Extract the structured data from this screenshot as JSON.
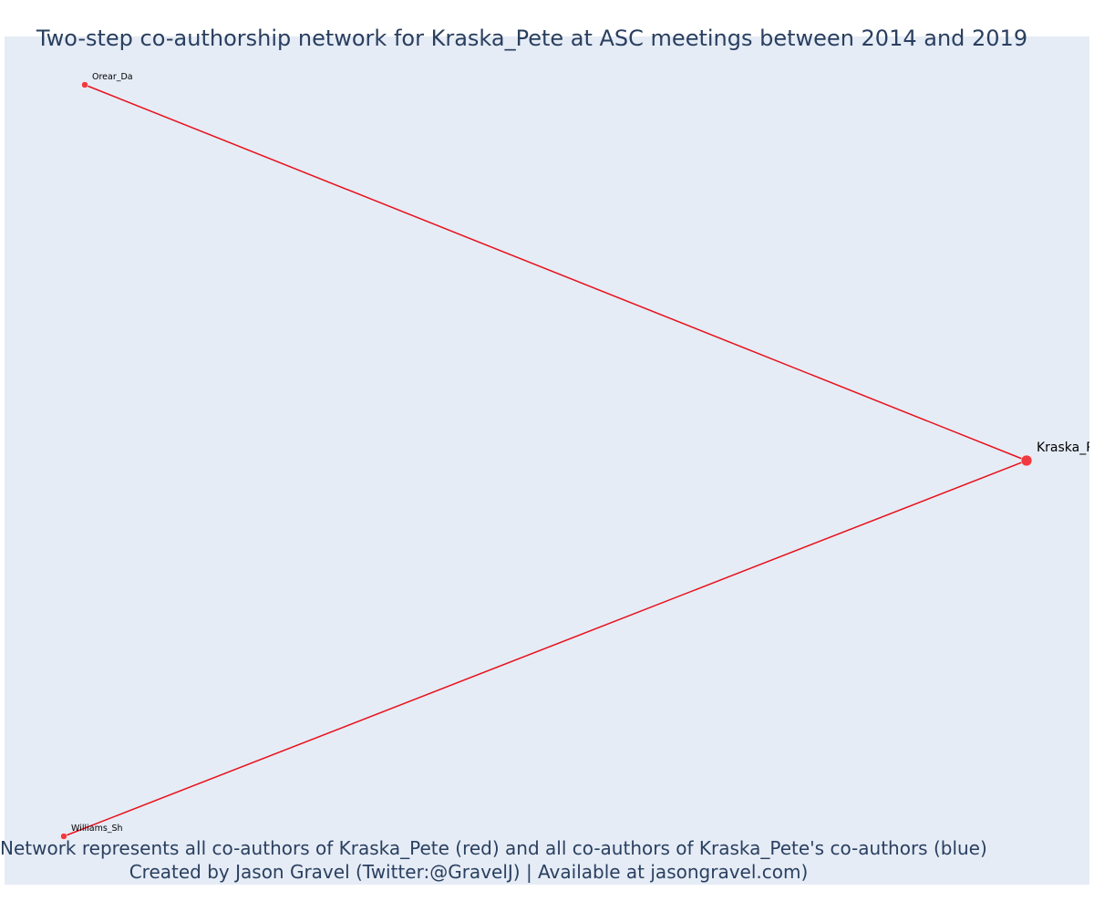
{
  "title": "Two-step co-authorship network for Kraska_Pete at ASC meetings between 2014 and 2019",
  "caption": {
    "line1": "Network represents all co-authors of Kraska_Pete (red) and all co-authors of Kraska_Pete's co-authors (blue)",
    "line2": "Created by Jason Gravel (Twitter:@GravelJ) | Available at jasongravel.com)"
  },
  "colors": {
    "edge": "#e8101a",
    "node": "#f03a3f",
    "plot_background": "#e5ecf6",
    "text": "#2a3f5f"
  },
  "network": {
    "nodes": [
      {
        "id": "Kraska_Pete",
        "label": "Kraska_Pete",
        "role": "focal",
        "group": "red"
      },
      {
        "id": "Orear_Da",
        "label": "Orear_Da",
        "role": "co-author",
        "group": "red"
      },
      {
        "id": "Williams_Sh",
        "label": "Williams_Sh",
        "role": "co-author",
        "group": "red"
      }
    ],
    "edges": [
      {
        "source": "Orear_Da",
        "target": "Kraska_Pete"
      },
      {
        "source": "Williams_Sh",
        "target": "Kraska_Pete"
      }
    ]
  }
}
